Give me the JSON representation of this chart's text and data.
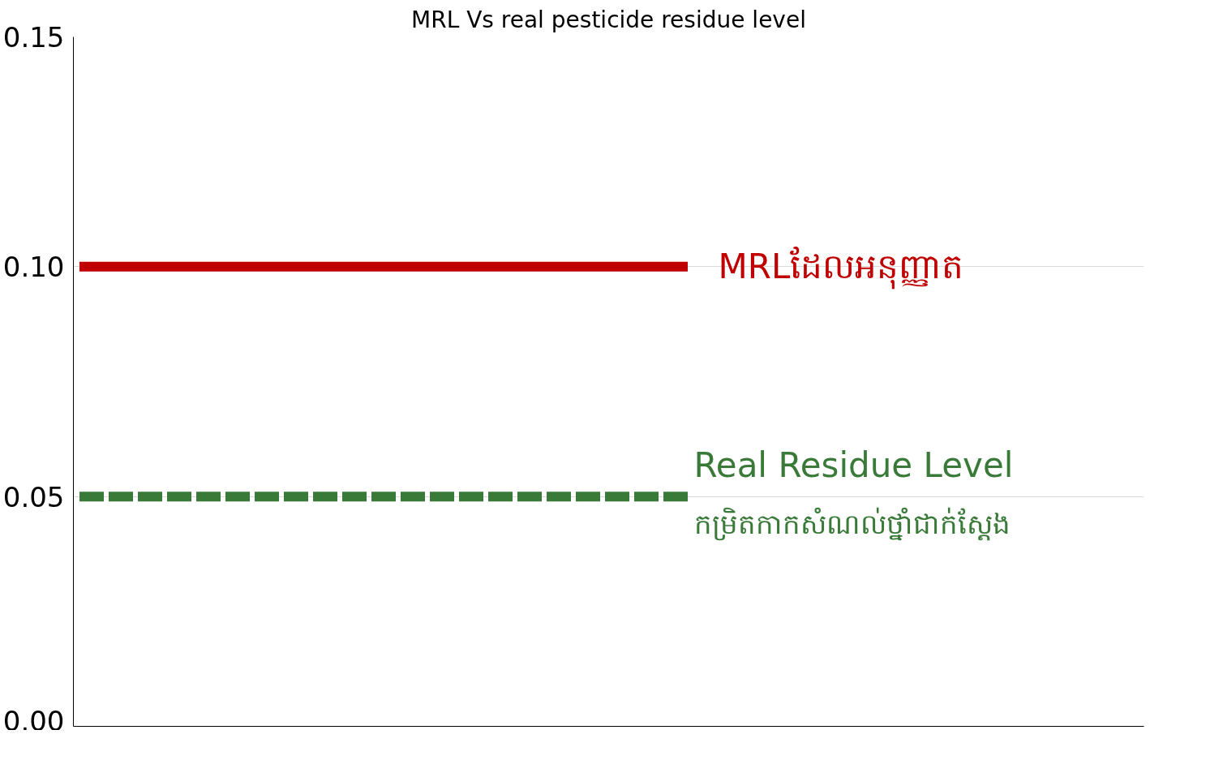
{
  "chart_data": {
    "type": "line",
    "title": "MRL Vs real pesticide residue level",
    "categories": [
      null,
      null,
      null
    ],
    "series": [
      {
        "name": "MRLដែលអនុញ្ញាត",
        "color": "#c00000",
        "values": [
          0.1,
          0.1,
          0.1
        ],
        "line_style": "solid"
      },
      {
        "name": "Real Residue Level\nកម្រិតកាកសំណល់ថ្នាំជាក់ស្តែង",
        "color": "#3a7a39",
        "values": [
          0.05,
          0.05,
          0.05
        ],
        "line_style": "dashed"
      }
    ],
    "ylim": [
      0,
      0.15
    ],
    "yticks": [
      {
        "value": 0,
        "label": "0.00"
      },
      {
        "value": 0.05,
        "label": "0.05"
      },
      {
        "value": 0.1,
        "label": "0.10"
      },
      {
        "value": 0.15,
        "label": "0.15"
      }
    ],
    "grid": "y",
    "marker": "none"
  }
}
